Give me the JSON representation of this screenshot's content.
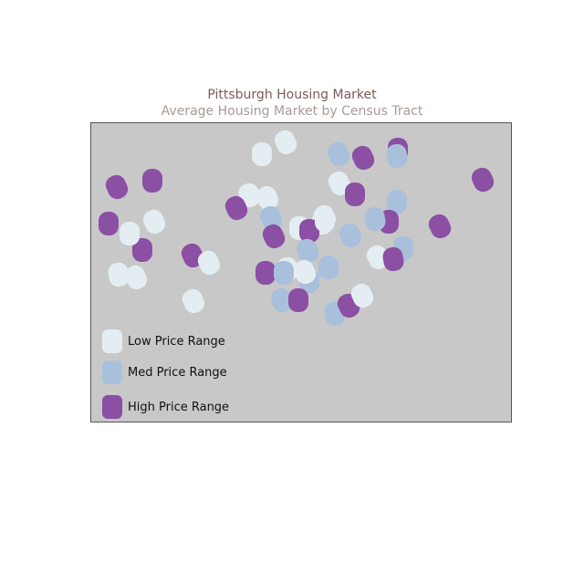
{
  "title": "Pittsburgh Housing Market",
  "subtitle": "Average Housing Market by Census Tract",
  "colors": {
    "low": "#e4edf2",
    "med": "#a8c0dc",
    "high": "#8b4fa3",
    "map_bg": "#c8c8c8",
    "map_border": "#555555"
  },
  "legend": [
    {
      "key": "low",
      "label": "Low Price Range"
    },
    {
      "key": "med",
      "label": "Med Price Range"
    },
    {
      "key": "high",
      "label": "High Price Range"
    }
  ],
  "tracts": [
    {
      "c": "low"
    },
    {
      "c": "low"
    },
    {
      "c": "med"
    },
    {
      "c": "high"
    },
    {
      "c": "high"
    },
    {
      "c": "med"
    },
    {
      "c": "high"
    },
    {
      "c": "high"
    },
    {
      "c": "high"
    },
    {
      "c": "low"
    },
    {
      "c": "low"
    },
    {
      "c": "low"
    },
    {
      "c": "high"
    },
    {
      "c": "med"
    },
    {
      "c": "high"
    },
    {
      "c": "low"
    },
    {
      "c": "med"
    },
    {
      "c": "high"
    },
    {
      "c": "high"
    },
    {
      "c": "med"
    },
    {
      "c": "low"
    },
    {
      "c": "low"
    },
    {
      "c": "low"
    },
    {
      "c": "high"
    },
    {
      "c": "high"
    },
    {
      "c": "high"
    },
    {
      "c": "med"
    },
    {
      "c": "high"
    },
    {
      "c": "med"
    },
    {
      "c": "med"
    },
    {
      "c": "high"
    },
    {
      "c": "low"
    },
    {
      "c": "low"
    },
    {
      "c": "med"
    },
    {
      "c": "med"
    },
    {
      "c": "low"
    },
    {
      "c": "high"
    },
    {
      "c": "low"
    },
    {
      "c": "low"
    },
    {
      "c": "low"
    },
    {
      "c": "med"
    },
    {
      "c": "med"
    },
    {
      "c": "high"
    },
    {
      "c": "high"
    },
    {
      "c": "low"
    },
    {
      "c": "med"
    },
    {
      "c": "low"
    },
    {
      "c": "low"
    },
    {
      "c": "high"
    },
    {
      "c": "low"
    }
  ]
}
